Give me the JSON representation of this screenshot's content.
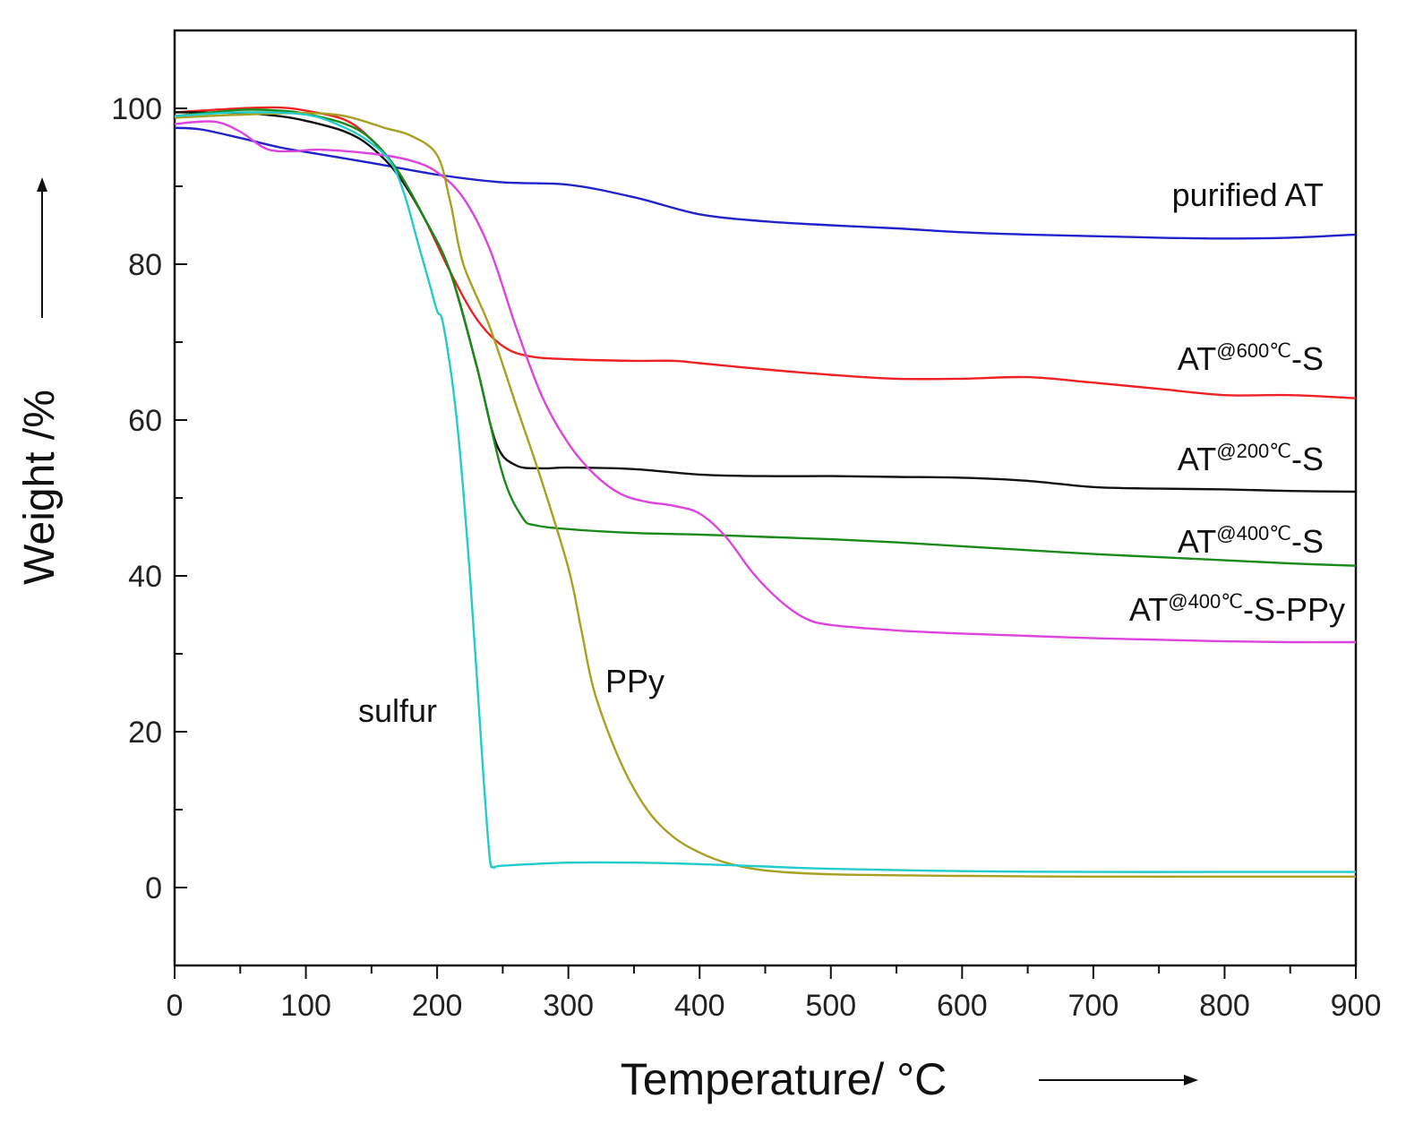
{
  "chart_data": {
    "type": "line",
    "title": "",
    "xlabel": "Temperature/ °C",
    "ylabel": "Weight /%",
    "xlim": [
      0,
      900
    ],
    "ylim": [
      -10,
      110
    ],
    "x_ticks": [
      0,
      100,
      200,
      300,
      400,
      500,
      600,
      700,
      800,
      900
    ],
    "y_ticks": [
      0,
      20,
      40,
      60,
      80,
      100
    ],
    "grid": false,
    "legend": "inline labels",
    "series": [
      {
        "name": "purified AT",
        "label_parts": [
          "purified AT"
        ],
        "color": "#2222cc",
        "points": [
          [
            0,
            97.5
          ],
          [
            20,
            97.3
          ],
          [
            50,
            96.2
          ],
          [
            80,
            95.0
          ],
          [
            100,
            94.4
          ],
          [
            150,
            93.0
          ],
          [
            200,
            91.5
          ],
          [
            250,
            90.5
          ],
          [
            300,
            90.2
          ],
          [
            350,
            88.6
          ],
          [
            400,
            86.4
          ],
          [
            450,
            85.5
          ],
          [
            500,
            85.0
          ],
          [
            550,
            84.6
          ],
          [
            600,
            84.1
          ],
          [
            650,
            83.8
          ],
          [
            700,
            83.6
          ],
          [
            750,
            83.4
          ],
          [
            800,
            83.3
          ],
          [
            850,
            83.4
          ],
          [
            900,
            83.8
          ]
        ]
      },
      {
        "name": "AT@600℃-S",
        "label_parts": [
          "AT",
          "@600℃",
          "-S"
        ],
        "color": "#ee2222",
        "points": [
          [
            0,
            99.5
          ],
          [
            50,
            100.0
          ],
          [
            80,
            100.1
          ],
          [
            100,
            99.7
          ],
          [
            130,
            98.5
          ],
          [
            150,
            96.0
          ],
          [
            170,
            92.0
          ],
          [
            190,
            86.0
          ],
          [
            210,
            79.0
          ],
          [
            230,
            73.0
          ],
          [
            250,
            69.5
          ],
          [
            270,
            68.2
          ],
          [
            300,
            67.8
          ],
          [
            350,
            67.6
          ],
          [
            380,
            67.6
          ],
          [
            400,
            67.3
          ],
          [
            450,
            66.5
          ],
          [
            500,
            65.8
          ],
          [
            550,
            65.3
          ],
          [
            600,
            65.3
          ],
          [
            650,
            65.5
          ],
          [
            700,
            64.8
          ],
          [
            750,
            64.0
          ],
          [
            800,
            63.2
          ],
          [
            850,
            63.2
          ],
          [
            900,
            62.8
          ]
        ]
      },
      {
        "name": "AT@200℃-S",
        "label_parts": [
          "AT",
          "@200℃",
          "-S"
        ],
        "color": "#111111",
        "points": [
          [
            0,
            99.5
          ],
          [
            50,
            99.4
          ],
          [
            80,
            99.0
          ],
          [
            100,
            98.4
          ],
          [
            130,
            97.0
          ],
          [
            150,
            95.0
          ],
          [
            170,
            91.5
          ],
          [
            190,
            86.0
          ],
          [
            210,
            79.0
          ],
          [
            230,
            67.0
          ],
          [
            245,
            57.0
          ],
          [
            260,
            54.2
          ],
          [
            280,
            53.8
          ],
          [
            300,
            53.9
          ],
          [
            350,
            53.7
          ],
          [
            400,
            53.0
          ],
          [
            450,
            52.8
          ],
          [
            500,
            52.8
          ],
          [
            550,
            52.7
          ],
          [
            600,
            52.6
          ],
          [
            650,
            52.2
          ],
          [
            700,
            51.4
          ],
          [
            750,
            51.2
          ],
          [
            800,
            51.1
          ],
          [
            850,
            50.9
          ],
          [
            900,
            50.8
          ]
        ]
      },
      {
        "name": "AT@400℃-S",
        "label_parts": [
          "AT",
          "@400℃",
          "-S"
        ],
        "color": "#1a8a1a",
        "points": [
          [
            0,
            99.0
          ],
          [
            50,
            99.8
          ],
          [
            80,
            99.7
          ],
          [
            100,
            99.3
          ],
          [
            130,
            98.0
          ],
          [
            150,
            96.0
          ],
          [
            170,
            92.0
          ],
          [
            190,
            86.0
          ],
          [
            210,
            79.0
          ],
          [
            230,
            67.0
          ],
          [
            250,
            53.0
          ],
          [
            265,
            47.5
          ],
          [
            275,
            46.5
          ],
          [
            300,
            46.0
          ],
          [
            350,
            45.5
          ],
          [
            400,
            45.3
          ],
          [
            450,
            45.0
          ],
          [
            500,
            44.7
          ],
          [
            550,
            44.3
          ],
          [
            600,
            43.8
          ],
          [
            650,
            43.3
          ],
          [
            700,
            42.8
          ],
          [
            750,
            42.4
          ],
          [
            800,
            42.0
          ],
          [
            850,
            41.6
          ],
          [
            900,
            41.3
          ]
        ]
      },
      {
        "name": "AT@400℃-S-PPy",
        "label_parts": [
          "AT",
          "@400℃",
          "-S-PPy"
        ],
        "color": "#dd44dd",
        "points": [
          [
            0,
            98.0
          ],
          [
            30,
            98.3
          ],
          [
            50,
            97.0
          ],
          [
            70,
            94.8
          ],
          [
            90,
            94.5
          ],
          [
            110,
            94.7
          ],
          [
            150,
            94.2
          ],
          [
            180,
            93.3
          ],
          [
            200,
            91.8
          ],
          [
            220,
            88.5
          ],
          [
            240,
            82.0
          ],
          [
            260,
            72.0
          ],
          [
            280,
            63.0
          ],
          [
            300,
            57.0
          ],
          [
            320,
            53.0
          ],
          [
            340,
            50.5
          ],
          [
            360,
            49.5
          ],
          [
            380,
            49.0
          ],
          [
            400,
            48.0
          ],
          [
            420,
            45.0
          ],
          [
            440,
            40.5
          ],
          [
            460,
            37.0
          ],
          [
            480,
            34.6
          ],
          [
            500,
            33.7
          ],
          [
            550,
            33.0
          ],
          [
            600,
            32.6
          ],
          [
            650,
            32.3
          ],
          [
            700,
            32.0
          ],
          [
            750,
            31.8
          ],
          [
            800,
            31.6
          ],
          [
            850,
            31.5
          ],
          [
            900,
            31.5
          ]
        ]
      },
      {
        "name": "PPy",
        "label_parts": [
          "PPy"
        ],
        "color": "#a8a020",
        "points": [
          [
            0,
            98.8
          ],
          [
            50,
            99.2
          ],
          [
            100,
            99.4
          ],
          [
            130,
            99.0
          ],
          [
            160,
            97.5
          ],
          [
            180,
            96.5
          ],
          [
            200,
            94.0
          ],
          [
            210,
            88.0
          ],
          [
            220,
            80.0
          ],
          [
            240,
            72.0
          ],
          [
            260,
            62.0
          ],
          [
            280,
            52.0
          ],
          [
            300,
            41.0
          ],
          [
            310,
            33.0
          ],
          [
            320,
            25.0
          ],
          [
            340,
            16.0
          ],
          [
            360,
            10.0
          ],
          [
            380,
            6.5
          ],
          [
            400,
            4.5
          ],
          [
            420,
            3.2
          ],
          [
            450,
            2.2
          ],
          [
            500,
            1.7
          ],
          [
            600,
            1.5
          ],
          [
            700,
            1.4
          ],
          [
            800,
            1.4
          ],
          [
            900,
            1.4
          ]
        ]
      },
      {
        "name": "sulfur",
        "label_parts": [
          "sulfur"
        ],
        "color": "#22cccc",
        "points": [
          [
            0,
            99.0
          ],
          [
            50,
            99.5
          ],
          [
            100,
            99.2
          ],
          [
            130,
            97.5
          ],
          [
            150,
            95.5
          ],
          [
            165,
            93.0
          ],
          [
            175,
            89.0
          ],
          [
            185,
            83.0
          ],
          [
            195,
            77.0
          ],
          [
            200,
            74.0
          ],
          [
            205,
            72.0
          ],
          [
            215,
            60.0
          ],
          [
            225,
            40.0
          ],
          [
            235,
            15.0
          ],
          [
            240,
            4.0
          ],
          [
            243,
            2.6
          ],
          [
            250,
            2.8
          ],
          [
            300,
            3.2
          ],
          [
            350,
            3.2
          ],
          [
            400,
            3.0
          ],
          [
            450,
            2.7
          ],
          [
            500,
            2.4
          ],
          [
            600,
            2.1
          ],
          [
            700,
            2.0
          ],
          [
            800,
            2.0
          ],
          [
            900,
            2.0
          ]
        ]
      }
    ]
  }
}
